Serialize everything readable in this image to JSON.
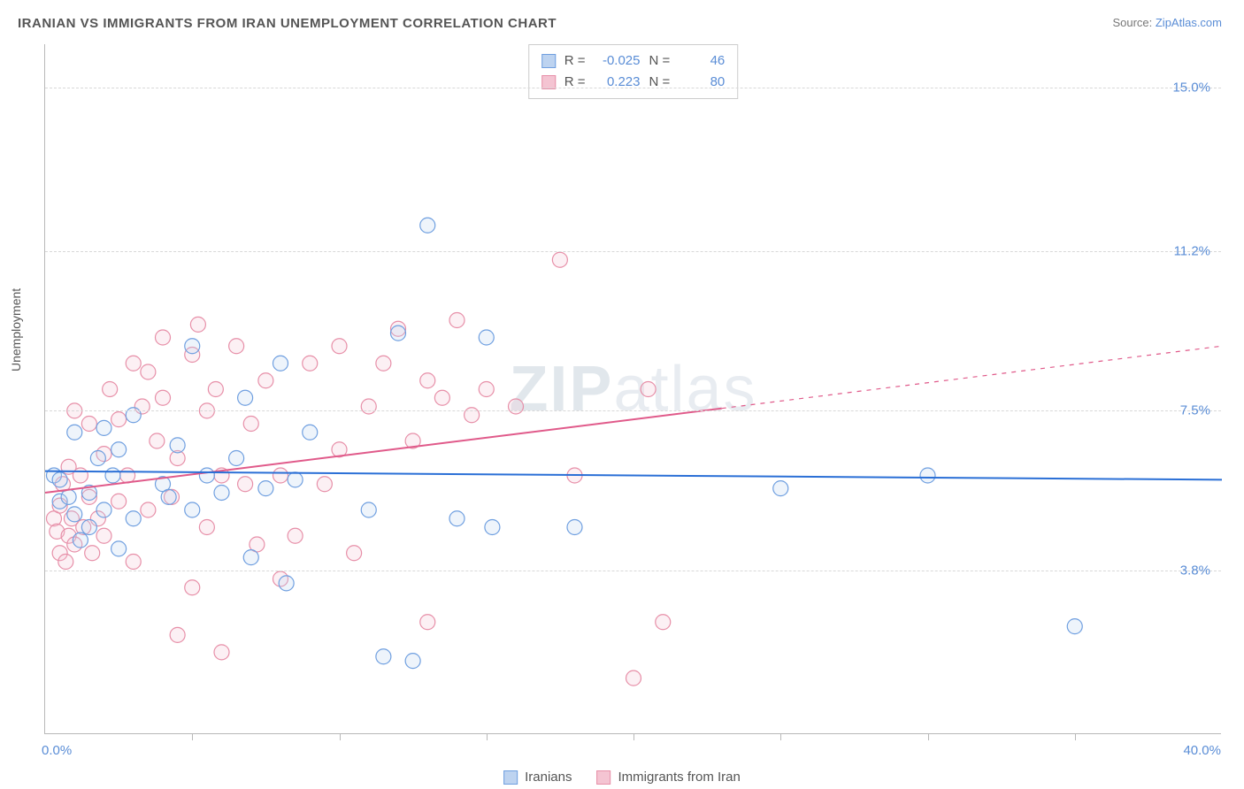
{
  "title": "IRANIAN VS IMMIGRANTS FROM IRAN UNEMPLOYMENT CORRELATION CHART",
  "source_prefix": "Source: ",
  "source_name": "ZipAtlas.com",
  "ylabel": "Unemployment",
  "watermark_bold": "ZIP",
  "watermark_light": "atlas",
  "chart": {
    "type": "scatter",
    "xlim": [
      0,
      40
    ],
    "ylim": [
      0,
      16
    ],
    "x_axis_labels": [
      {
        "v": 0.0,
        "label": "0.0%"
      },
      {
        "v": 40.0,
        "label": "40.0%"
      }
    ],
    "x_ticks": [
      5,
      10,
      15,
      20,
      25,
      30,
      35
    ],
    "y_ticks": [
      {
        "v": 3.8,
        "label": "3.8%"
      },
      {
        "v": 7.5,
        "label": "7.5%"
      },
      {
        "v": 11.2,
        "label": "11.2%"
      },
      {
        "v": 15.0,
        "label": "15.0%"
      }
    ],
    "background_color": "#ffffff",
    "grid_color": "#d8d8d8",
    "marker_radius": 8.5,
    "marker_stroke_width": 1.2,
    "marker_fill_opacity": 0.25,
    "series": [
      {
        "id": "iranians",
        "label": "Iranians",
        "color": "#6f9fe0",
        "fill": "#bdd3f0",
        "R": "-0.025",
        "N": "46",
        "trend": {
          "x0": 0,
          "y0": 6.1,
          "x1": 40,
          "y1": 5.9,
          "solid_until": 40,
          "line_color": "#2a6fd6",
          "line_width": 2
        },
        "points": [
          [
            0.3,
            6.0
          ],
          [
            0.5,
            5.4
          ],
          [
            0.5,
            5.9
          ],
          [
            0.8,
            5.5
          ],
          [
            1.0,
            5.1
          ],
          [
            1.0,
            7.0
          ],
          [
            1.2,
            4.5
          ],
          [
            1.5,
            5.6
          ],
          [
            1.5,
            4.8
          ],
          [
            1.8,
            6.4
          ],
          [
            2.0,
            5.2
          ],
          [
            2.0,
            7.1
          ],
          [
            2.3,
            6.0
          ],
          [
            2.5,
            4.3
          ],
          [
            2.5,
            6.6
          ],
          [
            3.0,
            5.0
          ],
          [
            3.0,
            7.4
          ],
          [
            4.0,
            5.8
          ],
          [
            4.2,
            5.5
          ],
          [
            4.5,
            6.7
          ],
          [
            5.0,
            5.2
          ],
          [
            5.0,
            9.0
          ],
          [
            5.5,
            6.0
          ],
          [
            6.0,
            5.6
          ],
          [
            6.5,
            6.4
          ],
          [
            6.8,
            7.8
          ],
          [
            7.0,
            4.1
          ],
          [
            7.5,
            5.7
          ],
          [
            8.0,
            8.6
          ],
          [
            8.2,
            3.5
          ],
          [
            8.5,
            5.9
          ],
          [
            9.0,
            7.0
          ],
          [
            11.0,
            5.2
          ],
          [
            11.5,
            1.8
          ],
          [
            12.0,
            9.3
          ],
          [
            12.5,
            1.7
          ],
          [
            13.0,
            11.8
          ],
          [
            14.0,
            5.0
          ],
          [
            15.0,
            9.2
          ],
          [
            15.2,
            4.8
          ],
          [
            18.0,
            4.8
          ],
          [
            25.0,
            5.7
          ],
          [
            30.0,
            6.0
          ],
          [
            35.0,
            2.5
          ]
        ]
      },
      {
        "id": "immigrants",
        "label": "Immigrants from Iran",
        "color": "#e78fa8",
        "fill": "#f4c4d2",
        "R": "0.223",
        "N": "80",
        "trend": {
          "x0": 0,
          "y0": 5.6,
          "x1": 40,
          "y1": 9.0,
          "solid_until": 23,
          "line_color": "#e05a8a",
          "line_width": 2
        },
        "points": [
          [
            0.3,
            5.0
          ],
          [
            0.4,
            4.7
          ],
          [
            0.5,
            4.2
          ],
          [
            0.5,
            5.3
          ],
          [
            0.6,
            5.8
          ],
          [
            0.7,
            4.0
          ],
          [
            0.8,
            4.6
          ],
          [
            0.8,
            6.2
          ],
          [
            0.9,
            5.0
          ],
          [
            1.0,
            7.5
          ],
          [
            1.0,
            4.4
          ],
          [
            1.2,
            6.0
          ],
          [
            1.3,
            4.8
          ],
          [
            1.5,
            5.5
          ],
          [
            1.5,
            7.2
          ],
          [
            1.6,
            4.2
          ],
          [
            1.8,
            5.0
          ],
          [
            2.0,
            6.5
          ],
          [
            2.0,
            4.6
          ],
          [
            2.2,
            8.0
          ],
          [
            2.5,
            7.3
          ],
          [
            2.5,
            5.4
          ],
          [
            2.8,
            6.0
          ],
          [
            3.0,
            4.0
          ],
          [
            3.0,
            8.6
          ],
          [
            3.3,
            7.6
          ],
          [
            3.5,
            5.2
          ],
          [
            3.5,
            8.4
          ],
          [
            3.8,
            6.8
          ],
          [
            4.0,
            9.2
          ],
          [
            4.0,
            7.8
          ],
          [
            4.3,
            5.5
          ],
          [
            4.5,
            6.4
          ],
          [
            4.5,
            2.3
          ],
          [
            5.0,
            3.4
          ],
          [
            5.0,
            8.8
          ],
          [
            5.2,
            9.5
          ],
          [
            5.5,
            7.5
          ],
          [
            5.5,
            4.8
          ],
          [
            5.8,
            8.0
          ],
          [
            6.0,
            6.0
          ],
          [
            6.0,
            1.9
          ],
          [
            6.5,
            9.0
          ],
          [
            6.8,
            5.8
          ],
          [
            7.0,
            7.2
          ],
          [
            7.2,
            4.4
          ],
          [
            7.5,
            8.2
          ],
          [
            8.0,
            6.0
          ],
          [
            8.0,
            3.6
          ],
          [
            8.5,
            4.6
          ],
          [
            9.0,
            8.6
          ],
          [
            9.5,
            5.8
          ],
          [
            10.0,
            9.0
          ],
          [
            10.0,
            6.6
          ],
          [
            10.5,
            4.2
          ],
          [
            11.0,
            7.6
          ],
          [
            11.5,
            8.6
          ],
          [
            12.0,
            9.4
          ],
          [
            12.5,
            6.8
          ],
          [
            13.0,
            8.2
          ],
          [
            13.0,
            2.6
          ],
          [
            13.5,
            7.8
          ],
          [
            14.0,
            9.6
          ],
          [
            14.5,
            7.4
          ],
          [
            15.0,
            8.0
          ],
          [
            16.0,
            7.6
          ],
          [
            17.5,
            11.0
          ],
          [
            18.0,
            6.0
          ],
          [
            20.0,
            1.3
          ],
          [
            20.5,
            8.0
          ],
          [
            21.0,
            2.6
          ]
        ]
      }
    ]
  },
  "legend_top": {
    "R_label": "R =",
    "N_label": "N ="
  },
  "legend_bottom": {}
}
